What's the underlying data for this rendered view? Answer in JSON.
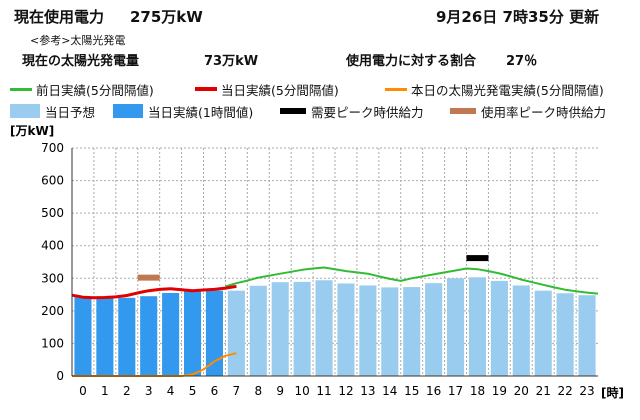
{
  "header": {
    "title_label": "現在使用電力",
    "title_value": "275万kW",
    "timestamp": "9月26日 7時35分 更新",
    "reference_note": "<参考>太陽光発電",
    "solar_label": "現在の太陽光発電量",
    "solar_value": "73万kW",
    "ratio_label": "使用電力に対する割合",
    "ratio_value": "27％"
  },
  "legend": [
    {
      "key": "prev_day",
      "label": "前日実績(5分間隔値)",
      "color": "#33bb33",
      "kind": "line"
    },
    {
      "key": "today",
      "label": "当日実績(5分間隔値)",
      "color": "#e00000",
      "kind": "line"
    },
    {
      "key": "solar",
      "label": "本日の太陽光発電実績(5分間隔値)",
      "color": "#ff8c00",
      "kind": "line"
    },
    {
      "key": "forecast",
      "label": "当日予想",
      "color": "#99ccee",
      "kind": "box"
    },
    {
      "key": "hourly",
      "label": "当日実績(1時間値)",
      "color": "#3399ee",
      "kind": "box"
    },
    {
      "key": "demand_peak",
      "label": "需要ピーク時供給力",
      "color": "#000000",
      "kind": "bar"
    },
    {
      "key": "usage_peak",
      "label": "使用率ピーク時供給力",
      "color": "#c07850",
      "kind": "bar"
    }
  ],
  "chart_data": {
    "type": "bar",
    "ylabel": "[万kW]",
    "xlabel": "[時]",
    "ylim": [
      0,
      700
    ],
    "yticks": [
      0,
      100,
      200,
      300,
      400,
      500,
      600,
      700
    ],
    "categories": [
      "0",
      "1",
      "2",
      "3",
      "4",
      "5",
      "6",
      "7",
      "8",
      "9",
      "10",
      "11",
      "12",
      "13",
      "14",
      "15",
      "16",
      "17",
      "18",
      "19",
      "20",
      "21",
      "22",
      "23"
    ],
    "series": [
      {
        "name": "当日実績(1時間値)",
        "kind": "bar",
        "color": "#3399ee",
        "values": [
          242,
          238,
          240,
          245,
          255,
          262,
          262,
          null,
          null,
          null,
          null,
          null,
          null,
          null,
          null,
          null,
          null,
          null,
          null,
          null,
          null,
          null,
          null,
          null
        ]
      },
      {
        "name": "当日予想",
        "kind": "bar",
        "color": "#99ccee",
        "values": [
          null,
          null,
          null,
          null,
          null,
          null,
          null,
          262,
          277,
          288,
          289,
          294,
          284,
          278,
          272,
          273,
          285,
          300,
          303,
          292,
          278,
          262,
          254,
          248
        ]
      },
      {
        "name": "前日実績(5分間隔値)",
        "kind": "line",
        "color": "#33bb33",
        "x": [
          6.5,
          7,
          7.5,
          8,
          8.5,
          9,
          9.5,
          10,
          10.5,
          11,
          11.5,
          12,
          12.5,
          13,
          13.5,
          14,
          14.5,
          15,
          15.5,
          16,
          16.5,
          17,
          17.5,
          18,
          18.5,
          19,
          19.5,
          20,
          20.5,
          21,
          21.5,
          22,
          22.5,
          23,
          23.5
        ],
        "y": [
          275,
          285,
          293,
          302,
          308,
          314,
          320,
          326,
          330,
          333,
          328,
          322,
          318,
          314,
          306,
          298,
          292,
          300,
          306,
          312,
          318,
          324,
          330,
          328,
          322,
          315,
          306,
          296,
          288,
          280,
          272,
          265,
          260,
          256,
          253
        ]
      },
      {
        "name": "当日実績(5分間隔値)",
        "kind": "line",
        "color": "#e00000",
        "x": [
          -0.5,
          0,
          0.5,
          1,
          1.5,
          2,
          2.5,
          3,
          3.5,
          4,
          4.5,
          5,
          5.5,
          6,
          6.5,
          7
        ],
        "y": [
          248,
          242,
          240,
          241,
          243,
          247,
          255,
          262,
          266,
          268,
          265,
          262,
          264,
          266,
          270,
          275
        ]
      },
      {
        "name": "本日の太陽光発電実績(5分間隔値)",
        "kind": "line",
        "color": "#ff8c00",
        "x": [
          -0.5,
          0,
          1,
          2,
          3,
          4,
          4.5,
          5,
          5.5,
          6,
          6.5,
          7
        ],
        "y": [
          0,
          0,
          0,
          0,
          0,
          0,
          0,
          5,
          20,
          45,
          62,
          70
        ]
      },
      {
        "name": "需要ピーク時供給力",
        "kind": "marker",
        "color": "#000000",
        "x": 18,
        "y": 362
      },
      {
        "name": "使用率ピーク時供給力",
        "kind": "marker",
        "color": "#c07850",
        "x": 3,
        "y": 302
      }
    ]
  }
}
